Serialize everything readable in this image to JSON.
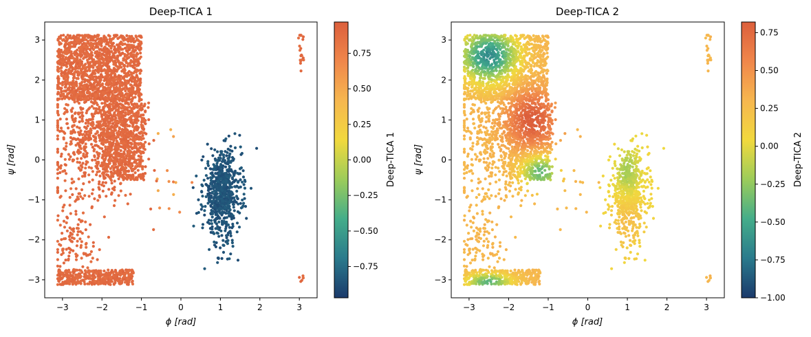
{
  "figure": {
    "background": "#ffffff"
  },
  "colormap": [
    "#1b3a6b",
    "#2a7a8c",
    "#44ad8a",
    "#9ccc5a",
    "#f1d93e",
    "#f6b74f",
    "#f0874b",
    "#dc5f3c"
  ],
  "chart_data": [
    {
      "type": "scatter",
      "title": "Deep-TICA 1",
      "xlabel": "ϕ [rad]",
      "ylabel": "ψ [rad]",
      "xlim": [
        -3.45,
        3.45
      ],
      "ylim": [
        -3.45,
        3.45
      ],
      "xticks": [
        -3,
        -2,
        -1,
        0,
        1,
        2,
        3
      ],
      "yticks": [
        -3,
        -2,
        -1,
        0,
        1,
        2,
        3
      ],
      "colorbar": {
        "label": "Deep-TICA 1",
        "range": [
          -0.97,
          0.97
        ],
        "ticks": [
          -0.75,
          -0.5,
          -0.25,
          0.0,
          0.25,
          0.5,
          0.75
        ],
        "tick_labels": [
          "−0.75",
          "−0.50",
          "−0.25",
          "0.00",
          "0.25",
          "0.50",
          "0.75"
        ]
      },
      "regions": [
        {
          "name": "beta-sheet basin",
          "x_range": [
            -3.14,
            -0.9
          ],
          "y_range": [
            1.5,
            3.14
          ],
          "value": 0.9
        },
        {
          "name": "PPII / alpha-R extension",
          "x_range": [
            -2.2,
            -0.9
          ],
          "y_range": [
            -0.5,
            1.5
          ],
          "value": 0.9
        },
        {
          "name": "lower wrap basin",
          "x_range": [
            -3.14,
            -1.2
          ],
          "y_range": [
            -3.14,
            -2.7
          ],
          "value": 0.9
        },
        {
          "name": "alpha-L basin",
          "x_range": [
            0.6,
            1.5
          ],
          "y_range": [
            -2.9,
            0.6
          ],
          "value": -0.9
        },
        {
          "name": "upper right edge",
          "x_range": [
            2.95,
            3.14
          ],
          "y_range": [
            2.1,
            3.0
          ],
          "value": 0.9
        }
      ]
    },
    {
      "type": "scatter",
      "title": "Deep-TICA 2",
      "xlabel": "ϕ [rad]",
      "ylabel": "ψ [rad]",
      "xlim": [
        -3.45,
        3.45
      ],
      "ylim": [
        -3.45,
        3.45
      ],
      "xticks": [
        -3,
        -2,
        -1,
        0,
        1,
        2,
        3
      ],
      "yticks": [
        -3,
        -2,
        -1,
        0,
        1,
        2,
        3
      ],
      "colorbar": {
        "label": "Deep-TICA 2",
        "range": [
          -1.0,
          0.82
        ],
        "ticks": [
          -1.0,
          -0.75,
          -0.5,
          -0.25,
          0.0,
          0.25,
          0.5,
          0.75
        ],
        "tick_labels": [
          "−1.00",
          "−0.75",
          "−0.50",
          "−0.25",
          "0.00",
          "0.25",
          "0.50",
          "0.75"
        ]
      },
      "regions": [
        {
          "name": "beta-sheet basin",
          "center": [
            -2.5,
            2.6
          ],
          "value": -0.6
        },
        {
          "name": "bridge region",
          "center": [
            -1.4,
            1.0
          ],
          "value": 0.8
        },
        {
          "name": "lower central band",
          "center": [
            -1.2,
            -0.3
          ],
          "value": -0.4
        },
        {
          "name": "alpha-L basin",
          "center": [
            1.0,
            -0.8
          ],
          "value": 0.0
        },
        {
          "name": "lower wrap basin",
          "center": [
            -2.5,
            -3.0
          ],
          "value": -0.5
        }
      ]
    }
  ],
  "ticklabels": {
    "x": [
      "−3",
      "−2",
      "−1",
      "0",
      "1",
      "2",
      "3"
    ],
    "y": [
      "−3",
      "−2",
      "−1",
      "0",
      "1",
      "2",
      "3"
    ]
  }
}
